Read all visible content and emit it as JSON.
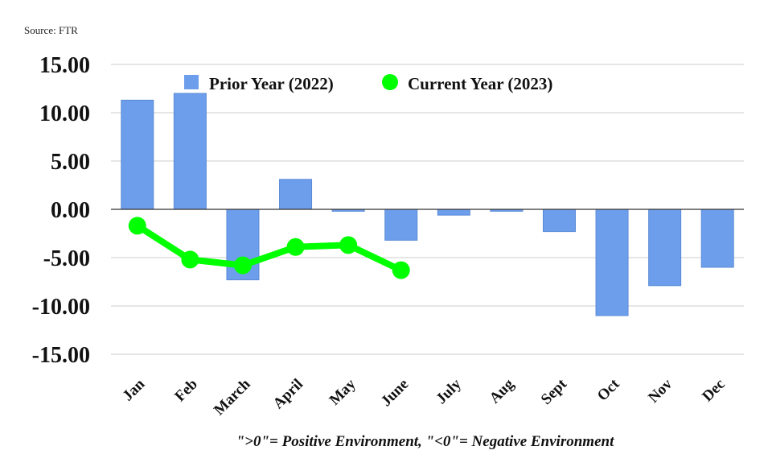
{
  "source": "Source: FTR",
  "footnote": "\">0\"= Positive Environment, \"<0\"= Negative Environment",
  "colors": {
    "bar": "#6d9eeb",
    "line": "#00ff00",
    "grid": "#cccccc",
    "zero": "#333333"
  },
  "chart_data": {
    "type": "bar",
    "title": "",
    "xlabel": "",
    "ylabel": "",
    "ylim": [
      -15,
      15
    ],
    "yticks": [
      "15.00",
      "10.00",
      "5.00",
      "0.00",
      "-5.00",
      "-10.00",
      "-15.00"
    ],
    "categories": [
      "Jan",
      "Feb",
      "March",
      "April",
      "May",
      "June",
      "July",
      "Aug",
      "Sept",
      "Oct",
      "Nov",
      "Dec"
    ],
    "legend_position": "top",
    "series": [
      {
        "name": "Prior Year (2022)",
        "kind": "bar",
        "values": [
          11.3,
          12.0,
          -7.3,
          3.1,
          -0.2,
          -3.2,
          -0.6,
          -0.2,
          -2.3,
          -11.0,
          -7.9,
          -6.0
        ]
      },
      {
        "name": "Current Year (2023)",
        "kind": "line",
        "values": [
          -1.7,
          -5.2,
          -5.8,
          -3.9,
          -3.7,
          -6.3,
          null,
          null,
          null,
          null,
          null,
          null
        ]
      }
    ]
  }
}
